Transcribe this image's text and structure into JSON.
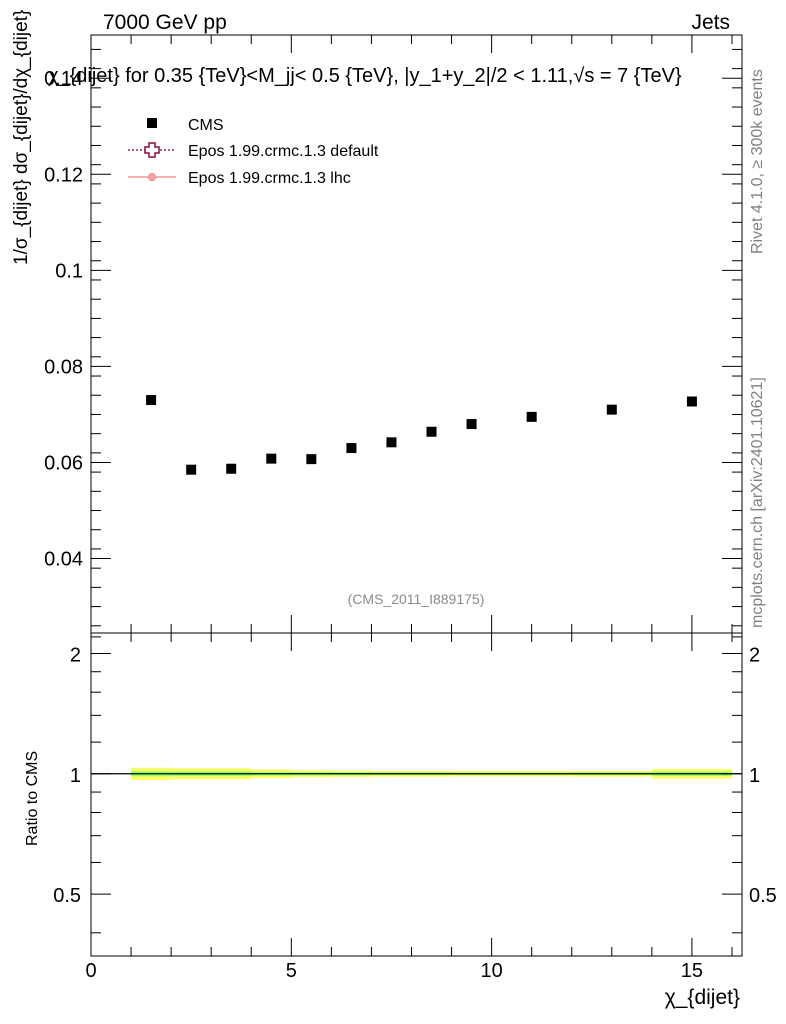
{
  "header": {
    "left": "7000 GeV pp",
    "right": "Jets"
  },
  "side_labels": {
    "rivet": "Rivet 4.1.0, ≥ 300k events",
    "mcplots": "mcplots.cern.ch [arXiv:2401.10621]"
  },
  "colors": {
    "cms": "#000000",
    "epos_default": "#7f0f3f",
    "epos_lhc": "#f08080",
    "band_outer": "#ffff66",
    "band_inner": "#99ff66"
  },
  "chart_data": [
    {
      "type": "scatter",
      "panel": "main",
      "title": "χ_{dijet} for 0.35 {TeV}<M_jj< 0.5 {TeV}, |y_1+y_2|/2 < 1.11,√s = 7 {TeV}",
      "ylabel": "1/σ_{dijet} dσ_{dijet}/dχ_{dijet}",
      "xlim": [
        0,
        16.25
      ],
      "ylim": [
        0.0245,
        0.149
      ],
      "yticks": [
        0.04,
        0.06,
        0.08,
        0.1,
        0.12,
        0.14
      ],
      "ytick_labels": [
        "0.04",
        "0.06",
        "0.08",
        "0.1",
        "0.12",
        "0.14"
      ],
      "series": [
        {
          "name": "CMS",
          "marker": "square",
          "x": [
            1.5,
            2.5,
            3.5,
            4.5,
            5.5,
            6.5,
            7.5,
            8.5,
            9.5,
            11,
            13,
            15
          ],
          "y": [
            0.073,
            0.0585,
            0.0587,
            0.0608,
            0.0607,
            0.063,
            0.0642,
            0.0664,
            0.068,
            0.0695,
            0.071,
            0.0727
          ]
        },
        {
          "name": "Epos 1.99.crmc.1.3 default",
          "marker": "open-cross",
          "x": [],
          "y": []
        },
        {
          "name": "Epos 1.99.crmc.1.3 lhc",
          "marker": "circle-line",
          "x": [],
          "y": []
        }
      ],
      "annotation": "(CMS_2011_I889175)",
      "legend": "top-left"
    },
    {
      "type": "line",
      "panel": "ratio",
      "ylabel": "Ratio to CMS",
      "xlabel": "χ_{dijet}",
      "xlim": [
        0,
        16.25
      ],
      "ylim": [
        0.35,
        2.25
      ],
      "xticks": [
        0,
        5,
        10,
        15
      ],
      "xtick_labels": [
        "0",
        "5",
        "10",
        "15"
      ],
      "yticks": [
        0.5,
        1,
        2
      ],
      "ytick_labels": [
        "0.5",
        "1",
        "2"
      ],
      "reference": 1,
      "band": {
        "x_edges": [
          1,
          2,
          3,
          4,
          5,
          6,
          7,
          8,
          9,
          10,
          12,
          14,
          16
        ],
        "outer_lo": [
          0.965,
          0.968,
          0.968,
          0.975,
          0.98,
          0.982,
          0.984,
          0.984,
          0.985,
          0.985,
          0.984,
          0.972
        ],
        "outer_hi": [
          1.035,
          1.032,
          1.032,
          1.025,
          1.02,
          1.018,
          1.016,
          1.016,
          1.015,
          1.015,
          1.016,
          1.028
        ],
        "inner_lo": [
          0.985,
          0.986,
          0.986,
          0.989,
          0.99,
          0.991,
          0.992,
          0.992,
          0.993,
          0.993,
          0.992,
          0.987
        ],
        "inner_hi": [
          1.015,
          1.014,
          1.014,
          1.011,
          1.01,
          1.009,
          1.008,
          1.008,
          1.007,
          1.007,
          1.008,
          1.013
        ]
      }
    }
  ]
}
